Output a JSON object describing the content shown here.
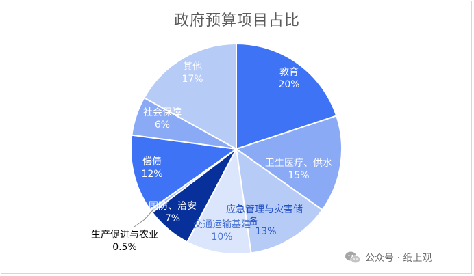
{
  "chart_data": {
    "type": "pie",
    "title": "政府预算项目占比",
    "slices": [
      {
        "label": "教育",
        "pct": "20%",
        "value": 20,
        "color": "#3f73f6",
        "text_color": "#ffffff"
      },
      {
        "label": "卫生医疗、供水",
        "pct": "15%",
        "value": 15,
        "color": "#8aaaf6",
        "text_color": "#ffffff"
      },
      {
        "label": "应急管理与灾害储备",
        "pct": "13%",
        "value": 13,
        "color": "#b7cbf7",
        "text_color": "#1f4fc4"
      },
      {
        "label": "交通运输基建",
        "pct": "10%",
        "value": 10,
        "color": "#dbe6fc",
        "text_color": "#4a74d6"
      },
      {
        "label": "国防、治安",
        "pct": "7%",
        "value": 7,
        "color": "#08309a",
        "text_color": "#ffffff"
      },
      {
        "label": "生产促进与农业",
        "pct": "0.5%",
        "value": 0.5,
        "color": "#9fb9f4",
        "text_color": "#000000"
      },
      {
        "label": "偿债",
        "pct": "12%",
        "value": 12,
        "color": "#3f73f6",
        "text_color": "#ffffff"
      },
      {
        "label": "社会保障",
        "pct": "6%",
        "value": 6,
        "color": "#8aaaf6",
        "text_color": "#ffffff"
      },
      {
        "label": "其他",
        "pct": "17%",
        "value": 17,
        "color": "#b7cbf7",
        "text_color": "#ffffff"
      }
    ]
  },
  "watermark": {
    "text": "公众号 · 纸上观",
    "icon": "wechat-icon"
  }
}
